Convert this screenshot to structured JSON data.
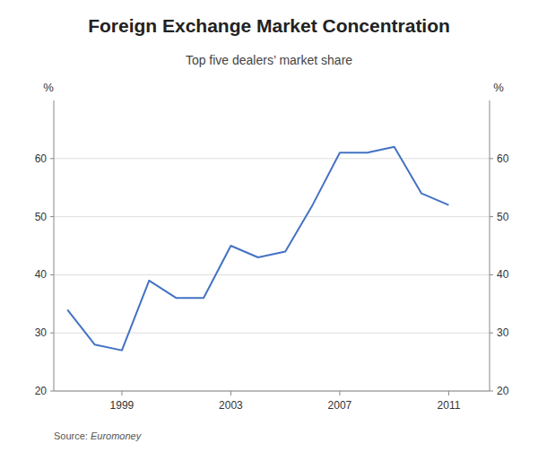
{
  "chart_data": {
    "type": "line",
    "title": "Foreign Exchange Market Concentration",
    "subtitle": "Top five dealers’ market share",
    "source_prefix": "Source: ",
    "source": "Euromoney",
    "ylabel": "%",
    "y2label": "%",
    "x": [
      1997,
      1998,
      1999,
      2000,
      2001,
      2002,
      2003,
      2004,
      2005,
      2006,
      2007,
      2008,
      2009,
      2010,
      2011
    ],
    "values": [
      34,
      28,
      27,
      39,
      36,
      36,
      45,
      43,
      44,
      52,
      61,
      61,
      62,
      54,
      52
    ],
    "color": "#4472C4",
    "xlim": [
      1996.5,
      2012.5
    ],
    "xticks": [
      1999,
      2003,
      2007,
      2011
    ],
    "ylim": [
      20,
      70
    ],
    "yticks": [
      20,
      30,
      40,
      50,
      60
    ],
    "y2lim": [
      20,
      70
    ],
    "y2ticks": [
      20,
      30,
      40,
      50,
      60
    ],
    "grid": true
  }
}
